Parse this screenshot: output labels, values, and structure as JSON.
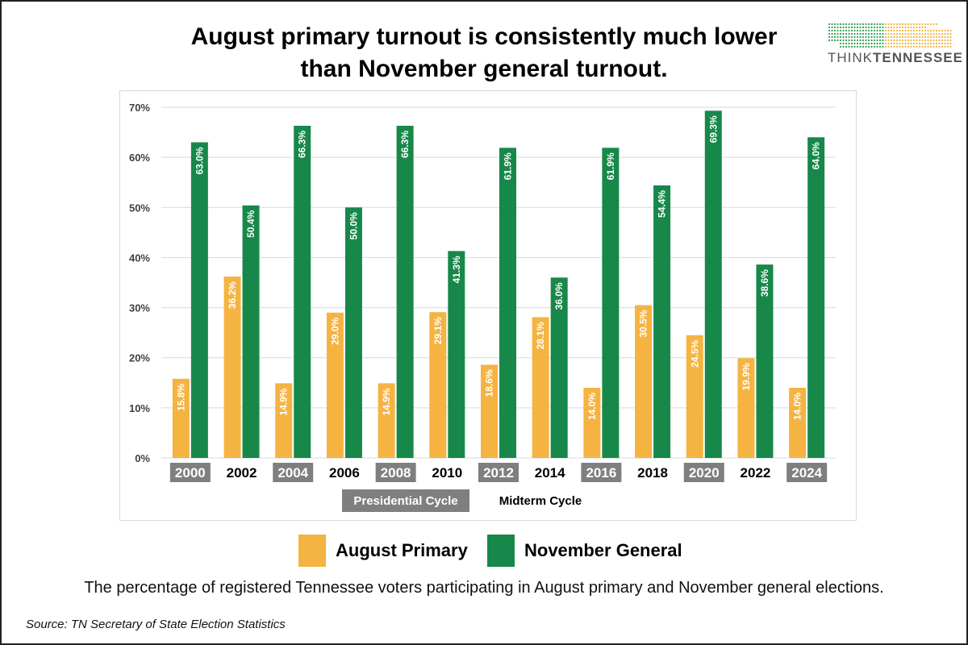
{
  "title": {
    "line1": "August primary turnout is consistently much lower",
    "line2": "than November general turnout."
  },
  "logo": {
    "text_light": "THINK",
    "text_bold": "TENNESSEE",
    "colors": [
      "#2e9e4f",
      "#f2b33d"
    ]
  },
  "colors": {
    "primary": "#f5b342",
    "general": "#17884a",
    "presidential_badge": "#7f7f7f",
    "grid": "#d9d9d9",
    "axis_text": "#404040"
  },
  "chart_data": {
    "type": "bar",
    "title": "August primary turnout is consistently much lower than November general turnout.",
    "categories": [
      "2000",
      "2002",
      "2004",
      "2006",
      "2008",
      "2010",
      "2012",
      "2014",
      "2016",
      "2018",
      "2020",
      "2022",
      "2024"
    ],
    "presidential": [
      true,
      false,
      true,
      false,
      true,
      false,
      true,
      false,
      true,
      false,
      true,
      false,
      true
    ],
    "series": [
      {
        "name": "August Primary",
        "values": [
          15.8,
          36.2,
          14.9,
          29.0,
          14.9,
          29.1,
          18.6,
          28.1,
          14.0,
          30.5,
          24.5,
          19.9,
          14.0
        ],
        "labels": [
          "15.8%",
          "36.2%",
          "14.9%",
          "29.0%",
          "14.9%",
          "29.1%",
          "18.6%",
          "28.1%",
          "14.0%",
          "30.5%",
          "24.5%",
          "19.9%",
          "14.0%"
        ]
      },
      {
        "name": "November General",
        "values": [
          63.0,
          50.4,
          66.3,
          50.0,
          66.3,
          41.3,
          61.9,
          36.0,
          61.9,
          54.4,
          69.3,
          38.6,
          64.0
        ],
        "labels": [
          "63.0%",
          "50.4%",
          "66.3%",
          "50.0%",
          "66.3%",
          "41.3%",
          "61.9%",
          "36.0%",
          "61.9%",
          "54.4%",
          "69.3%",
          "38.6%",
          "64.0%"
        ]
      }
    ],
    "yticks": [
      "0%",
      "10%",
      "20%",
      "30%",
      "40%",
      "50%",
      "60%",
      "70%"
    ],
    "ylim": [
      0,
      70
    ],
    "xlabel": "",
    "ylabel": "",
    "grid": true,
    "cycle_key": {
      "presidential": "Presidential Cycle",
      "midterm": "Midterm Cycle"
    }
  },
  "legend": {
    "primary_label": "August Primary",
    "general_label": "November General"
  },
  "caption": "The percentage of registered Tennessee voters participating in August primary and November general elections.",
  "source": "Source: TN Secretary of State Election Statistics"
}
